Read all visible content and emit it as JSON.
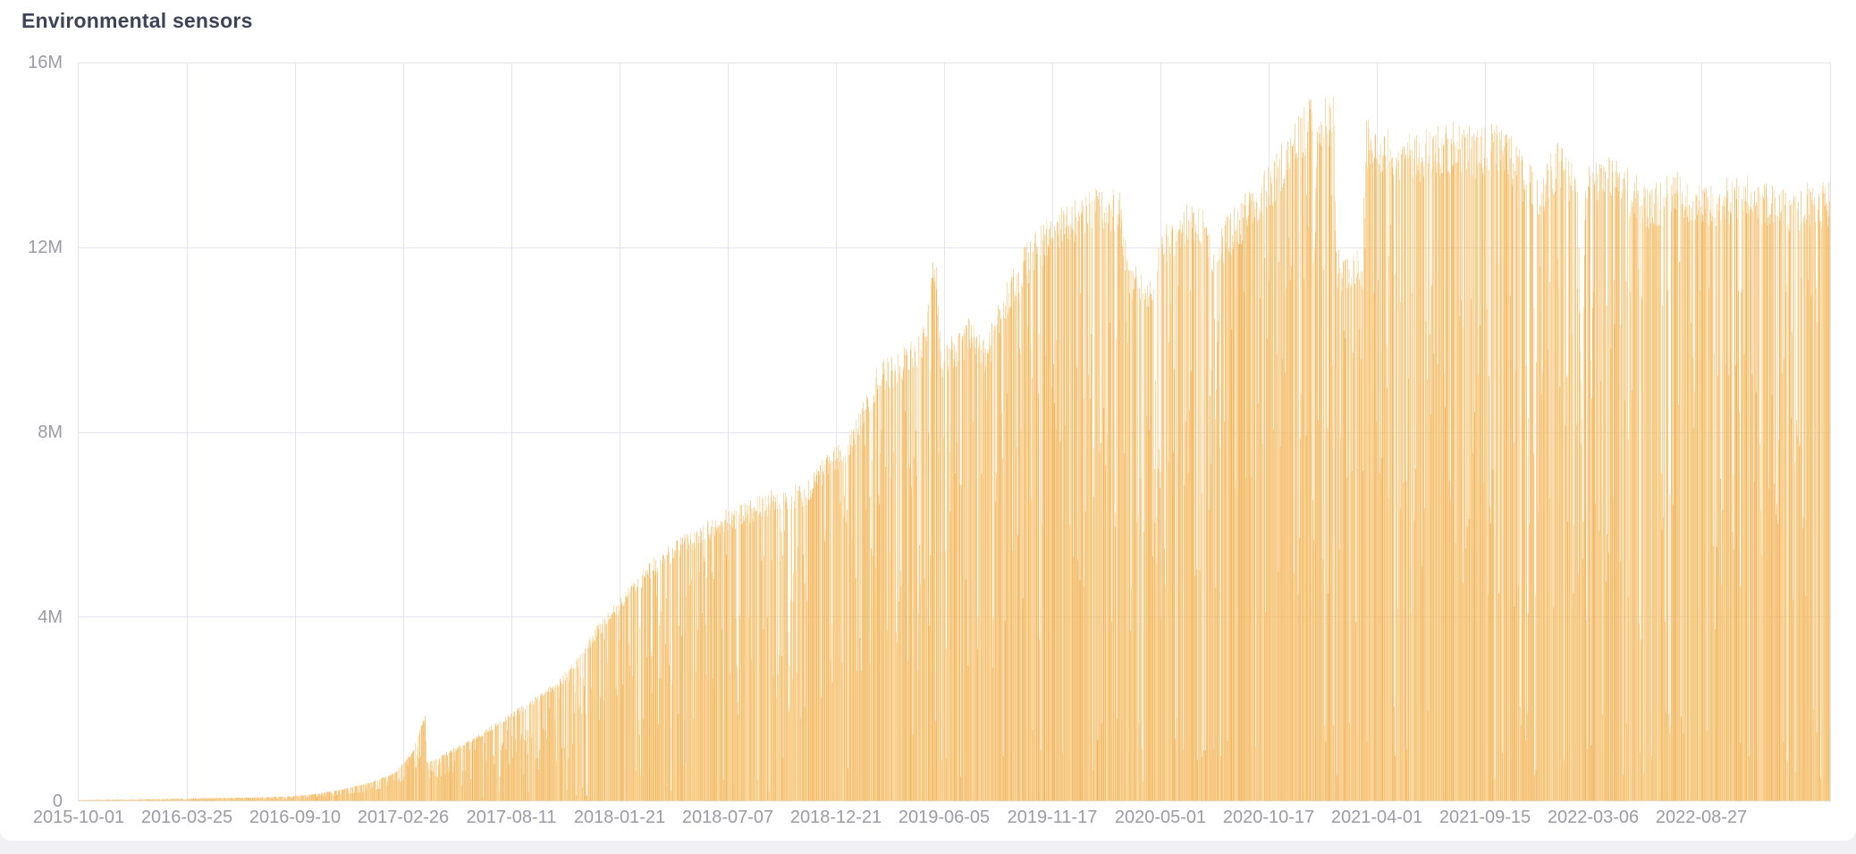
{
  "panel": {
    "title": "Environmental sensors"
  },
  "chart_data": {
    "type": "bar",
    "title": "Environmental sensors",
    "xlabel": "",
    "ylabel": "",
    "legend": "none",
    "grid": true,
    "ylim": [
      0,
      16000000
    ],
    "y_ticks": [
      "16M",
      "12M",
      "8M",
      "4M",
      "0"
    ],
    "y_tick_values": [
      16000000,
      12000000,
      8000000,
      4000000,
      0
    ],
    "x_ticks": [
      "2015-10-01",
      "2016-03-25",
      "2016-09-10",
      "2017-02-26",
      "2017-08-11",
      "2018-01-21",
      "2018-07-07",
      "2018-12-21",
      "2019-06-05",
      "2019-11-17",
      "2020-05-01",
      "2020-10-17",
      "2021-04-01",
      "2021-09-15",
      "2022-03-06",
      "2022-08-27"
    ],
    "x_tick_interval_days": 176,
    "x_range": [
      "2015-10-01",
      "2023-07-20"
    ],
    "bar_unit": "1 day",
    "colors": {
      "bar_dark": "#efa63c",
      "bar_light": "#fad28c",
      "grid": "#e3e4ef",
      "axis_text": "#9b9ba3",
      "title_text": "#3e4457",
      "panel_bg": "#ffffff",
      "page_bg": "#f1f1f5"
    },
    "envelope_daily_max_millions": [
      [
        "2015-10-01",
        0.025
      ],
      [
        "2015-12-01",
        0.04
      ],
      [
        "2016-02-01",
        0.05
      ],
      [
        "2016-05-01",
        0.07
      ],
      [
        "2016-08-01",
        0.09
      ],
      [
        "2016-09-10",
        0.11
      ],
      [
        "2016-10-20",
        0.16
      ],
      [
        "2016-12-01",
        0.26
      ],
      [
        "2017-01-15",
        0.4
      ],
      [
        "2017-02-26",
        0.62
      ],
      [
        "2017-03-25",
        1.05
      ],
      [
        "2017-04-17",
        1.9
      ],
      [
        "2017-04-19",
        0.85
      ],
      [
        "2017-05-20",
        1.05
      ],
      [
        "2017-07-01",
        1.35
      ],
      [
        "2017-08-11",
        1.7
      ],
      [
        "2017-10-01",
        2.15
      ],
      [
        "2017-11-15",
        2.55
      ],
      [
        "2018-01-01",
        3.3
      ],
      [
        "2018-01-21",
        3.8
      ],
      [
        "2018-03-01",
        4.4
      ],
      [
        "2018-04-15",
        5.15
      ],
      [
        "2018-06-01",
        5.65
      ],
      [
        "2018-07-07",
        5.95
      ],
      [
        "2018-08-15",
        6.25
      ],
      [
        "2018-10-01",
        6.5
      ],
      [
        "2018-11-15",
        6.75
      ],
      [
        "2018-12-26",
        6.85
      ],
      [
        "2019-01-25",
        7.4
      ],
      [
        "2019-03-10",
        7.95
      ],
      [
        "2019-04-22",
        9.4
      ],
      [
        "2019-06-05",
        9.75
      ],
      [
        "2019-07-10",
        10.35
      ],
      [
        "2019-07-26",
        12.0
      ],
      [
        "2019-08-03",
        9.85
      ],
      [
        "2019-09-01",
        10.15
      ],
      [
        "2019-09-25",
        10.45
      ],
      [
        "2019-10-15",
        9.85
      ],
      [
        "2019-11-17",
        11.2
      ],
      [
        "2019-12-15",
        11.9
      ],
      [
        "2020-01-15",
        12.4
      ],
      [
        "2020-03-01",
        12.9
      ],
      [
        "2020-04-10",
        13.15
      ],
      [
        "2020-05-20",
        13.2
      ],
      [
        "2020-06-05",
        11.65
      ],
      [
        "2020-07-10",
        11.45
      ],
      [
        "2020-08-05",
        12.45
      ],
      [
        "2020-09-05",
        12.8
      ],
      [
        "2020-10-05",
        12.9
      ],
      [
        "2020-10-20",
        12.3
      ],
      [
        "2020-11-10",
        12.55
      ],
      [
        "2020-12-05",
        12.95
      ],
      [
        "2021-01-05",
        13.45
      ],
      [
        "2021-02-01",
        14.0
      ],
      [
        "2021-02-25",
        14.5
      ],
      [
        "2021-03-22",
        15.05
      ],
      [
        "2021-03-30",
        15.25
      ],
      [
        "2021-04-02",
        11.2
      ],
      [
        "2021-04-07",
        15.2
      ],
      [
        "2021-05-04",
        15.15
      ],
      [
        "2021-05-09",
        11.85
      ],
      [
        "2021-06-20",
        11.9
      ],
      [
        "2021-06-25",
        14.65
      ],
      [
        "2021-08-01",
        14.45
      ],
      [
        "2021-09-15",
        14.35
      ],
      [
        "2021-11-01",
        14.6
      ],
      [
        "2021-12-20",
        14.5
      ],
      [
        "2022-02-01",
        14.65
      ],
      [
        "2022-03-06",
        13.95
      ],
      [
        "2022-04-01",
        13.5
      ],
      [
        "2022-05-10",
        14.25
      ],
      [
        "2022-06-05",
        13.4
      ],
      [
        "2022-06-09",
        10.4
      ],
      [
        "2022-06-11",
        7.8
      ],
      [
        "2022-06-14",
        10.5
      ],
      [
        "2022-06-18",
        13.9
      ],
      [
        "2022-07-15",
        14.0
      ],
      [
        "2022-08-27",
        13.6
      ],
      [
        "2022-10-01",
        13.25
      ],
      [
        "2022-11-15",
        13.55
      ],
      [
        "2023-01-01",
        13.3
      ],
      [
        "2023-03-01",
        13.45
      ],
      [
        "2023-05-01",
        13.25
      ],
      [
        "2023-07-20",
        13.3
      ]
    ],
    "texture": {
      "jitter": [
        0.93,
        1.01
      ],
      "dip_probability": 0.25,
      "dip_depth": [
        0.12,
        0.72
      ],
      "deep_dip_eras": [
        {
          "from": "2015-10-01",
          "to": "2017-08-31",
          "p": 0.004
        },
        {
          "from": "2017-09-01",
          "to": "2019-07-31",
          "p": 0.028
        },
        {
          "from": "2019-08-01",
          "to": "2020-12-31",
          "p": 0.06
        },
        {
          "from": "2021-01-01",
          "to": "2023-07-20",
          "p": 0.045
        }
      ],
      "deep_dip_range": [
        0.03,
        0.15
      ],
      "solid_before": "2017-06-01",
      "min_factor_early": 0.55
    }
  }
}
